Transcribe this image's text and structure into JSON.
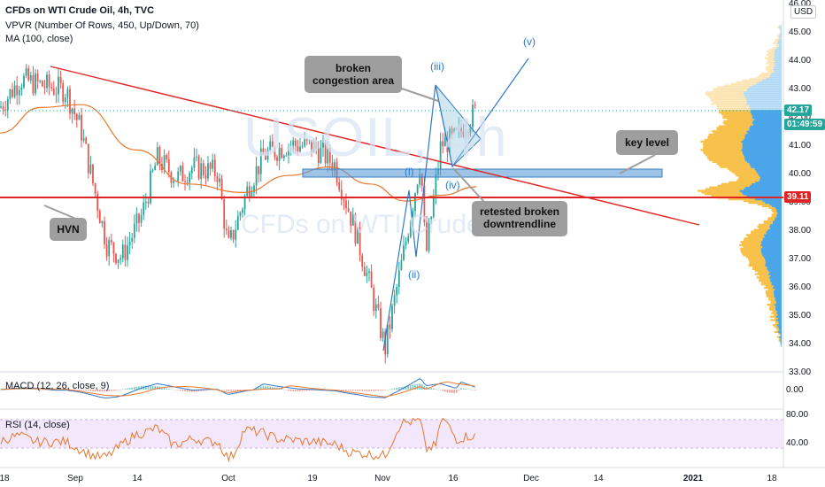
{
  "header": {
    "title": "CFDs on WTI Crude Oil, 4h, TVC",
    "vpvr": "VPVR (Number Of Rows, 450, Up/Down, 70)",
    "ma": "MA (100, close)"
  },
  "price_axis": {
    "currency": "USD",
    "ticks": [
      "46.00",
      "45.00",
      "44.00",
      "43.00",
      "42.00",
      "41.00",
      "40.00",
      "39.00",
      "38.00",
      "37.00",
      "36.00",
      "35.00",
      "34.00",
      "33.00"
    ],
    "last_price": "42.17",
    "countdown": "01:49:59",
    "level_tag": "39.11"
  },
  "time_axis": {
    "ticks": [
      "18",
      "Sep",
      "14",
      "Oct",
      "19",
      "Nov",
      "16",
      "Dec",
      "14",
      "2021",
      "18"
    ]
  },
  "watermark": {
    "symbol": "USOIL, 4h",
    "name": "CFDs on WTI Crude Oil"
  },
  "annotations": {
    "broken_congestion": "broken congestion area",
    "key_level": "key level",
    "hvn": "HVN",
    "retested": "retested broken downtrendline"
  },
  "waves": [
    "(i)",
    "(ii)",
    "(iii)",
    "(iv)",
    "(v)"
  ],
  "macd": {
    "label": "MACD (12, 26, close, 9)",
    "ticks": [
      "0.00"
    ]
  },
  "rsi": {
    "label": "RSI (14, close)",
    "ticks": [
      "80.00",
      "40.00"
    ]
  },
  "colors": {
    "up": "#26a69a",
    "down": "#ef5350",
    "ma": "#e8772e",
    "trendline": "#e02424",
    "wave": "#2f79c9",
    "keylevel": "#5b9bd5",
    "vpvr_up": "#f7c14b",
    "vpvr_down": "#4aa6e8"
  },
  "chart_data": {
    "type": "candlestick",
    "title": "CFDs on WTI Crude Oil, 4h, TVC",
    "x_range": [
      "Aug 18",
      "Jan 18"
    ],
    "ylim": [
      33,
      46
    ],
    "key_level": 40.0,
    "hvn_level": 39.11,
    "last_price": 42.17,
    "trendline": {
      "start": [
        "Aug 21",
        43.8
      ],
      "end": [
        "Dec 21",
        38.2
      ]
    },
    "price_path": [
      {
        "x": "Aug 18",
        "y": 42.3
      },
      {
        "x": "Aug 22",
        "y": 43.3
      },
      {
        "x": "Aug 26",
        "y": 43.1
      },
      {
        "x": "Aug 31",
        "y": 42.9
      },
      {
        "x": "Sep 3",
        "y": 41.5
      },
      {
        "x": "Sep 8",
        "y": 37.5
      },
      {
        "x": "Sep 11",
        "y": 37.0
      },
      {
        "x": "Sep 15",
        "y": 38.5
      },
      {
        "x": "Sep 18",
        "y": 40.5
      },
      {
        "x": "Sep 22",
        "y": 39.8
      },
      {
        "x": "Sep 25",
        "y": 40.2
      },
      {
        "x": "Sep 30",
        "y": 40.0
      },
      {
        "x": "Oct 2",
        "y": 37.3
      },
      {
        "x": "Oct 6",
        "y": 39.5
      },
      {
        "x": "Oct 9",
        "y": 40.6
      },
      {
        "x": "Oct 14",
        "y": 41.0
      },
      {
        "x": "Oct 19",
        "y": 40.9
      },
      {
        "x": "Oct 23",
        "y": 40.3
      },
      {
        "x": "Oct 27",
        "y": 38.0
      },
      {
        "x": "Oct 30",
        "y": 36.0
      },
      {
        "x": "Nov 2",
        "y": 33.8
      },
      {
        "x": "Nov 6",
        "y": 37.5
      },
      {
        "x": "Nov 9",
        "y": 40.5
      },
      {
        "x": "Nov 10",
        "y": 37.0
      },
      {
        "x": "Nov 13",
        "y": 41.0
      },
      {
        "x": "Nov 16",
        "y": 41.2
      },
      {
        "x": "Nov 18",
        "y": 41.8
      },
      {
        "x": "Nov 20",
        "y": 42.17
      }
    ],
    "ma100": [
      {
        "x": "Aug 18",
        "y": 41.4
      },
      {
        "x": "Aug 26",
        "y": 42.3
      },
      {
        "x": "Sep 3",
        "y": 42.4
      },
      {
        "x": "Sep 14",
        "y": 40.8
      },
      {
        "x": "Sep 24",
        "y": 39.6
      },
      {
        "x": "Oct 5",
        "y": 39.3
      },
      {
        "x": "Oct 14",
        "y": 39.9
      },
      {
        "x": "Oct 22",
        "y": 40.2
      },
      {
        "x": "Oct 30",
        "y": 39.6
      },
      {
        "x": "Nov 6",
        "y": 39.0
      },
      {
        "x": "Nov 13",
        "y": 39.2
      },
      {
        "x": "Nov 20",
        "y": 39.5
      }
    ],
    "elliott_waves": [
      {
        "label": "(i)",
        "x": "Nov 9",
        "y": 40.3
      },
      {
        "label": "(ii)",
        "x": "Nov 10",
        "y": 36.4
      },
      {
        "label": "(iii)",
        "x": "Nov 13",
        "y": 43.7
      },
      {
        "label": "(iv)",
        "x": "Nov 18",
        "y": 39.6
      },
      {
        "label": "(v)",
        "x": "Dec 1",
        "y": 44.6
      }
    ],
    "indicators": {
      "macd": {
        "label": "MACD (12, 26, close, 9)",
        "zero": 0.0
      },
      "rsi": {
        "label": "RSI (14, close)",
        "upper": 80,
        "lower": 40
      }
    }
  }
}
